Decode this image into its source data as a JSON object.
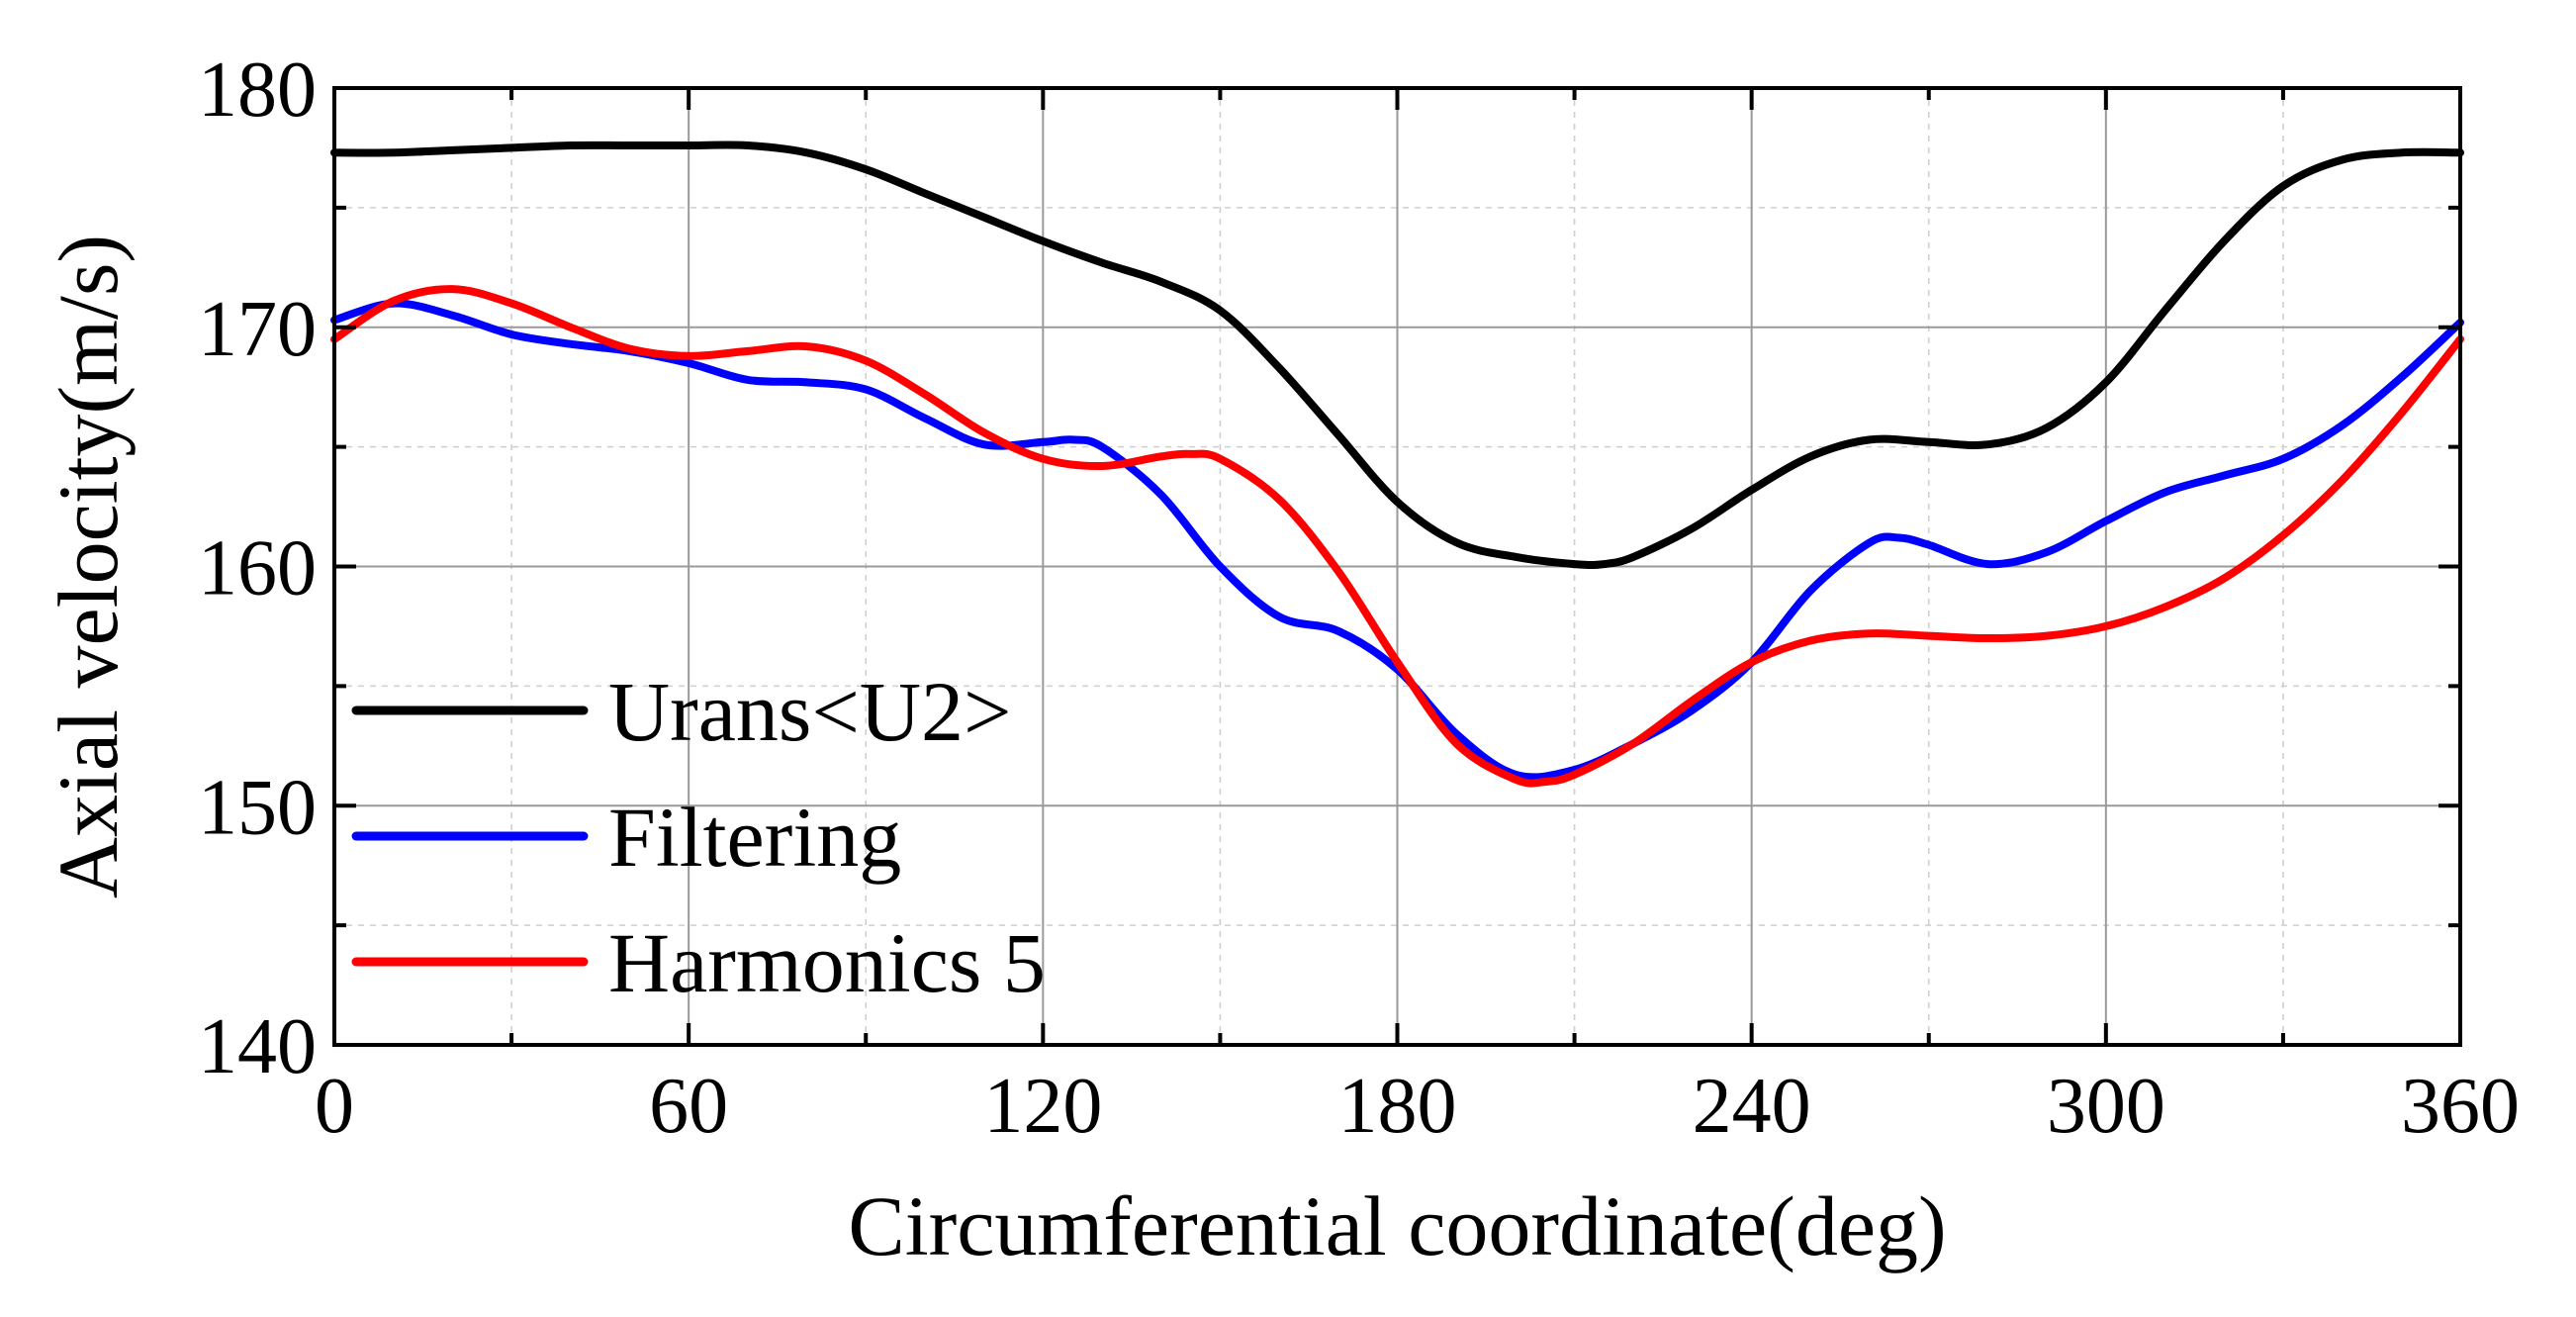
{
  "chart_data": {
    "type": "line",
    "xlabel": "Circumferential coordinate(deg)",
    "ylabel": "Axial velocity(m/s)",
    "xlim": [
      0,
      360
    ],
    "ylim": [
      140,
      180
    ],
    "xticks": [
      0,
      60,
      120,
      180,
      240,
      300,
      360
    ],
    "yticks": [
      140,
      150,
      160,
      170,
      180
    ],
    "grid": true,
    "legend_position": "lower-left",
    "series": [
      {
        "name": "Urans<U2>",
        "color": "#000000",
        "x": [
          0,
          10,
          20,
          30,
          40,
          50,
          60,
          70,
          80,
          90,
          100,
          110,
          120,
          130,
          140,
          150,
          160,
          170,
          180,
          190,
          200,
          210,
          215,
          220,
          230,
          240,
          250,
          260,
          270,
          280,
          290,
          300,
          310,
          320,
          330,
          340,
          350,
          360
        ],
        "y": [
          177.3,
          177.3,
          177.4,
          177.5,
          177.6,
          177.6,
          177.6,
          177.6,
          177.3,
          176.6,
          175.6,
          174.6,
          173.6,
          172.7,
          171.9,
          170.7,
          168.3,
          165.5,
          162.7,
          161.0,
          160.4,
          160.1,
          160.1,
          160.4,
          161.6,
          163.2,
          164.6,
          165.3,
          165.2,
          165.1,
          165.8,
          167.7,
          170.7,
          173.6,
          175.9,
          177.0,
          177.3,
          177.3
        ]
      },
      {
        "name": "Filtering",
        "color": "#0000ff",
        "x": [
          0,
          10,
          20,
          30,
          40,
          50,
          60,
          70,
          80,
          90,
          100,
          110,
          120,
          125,
          130,
          140,
          150,
          160,
          170,
          180,
          190,
          200,
          210,
          220,
          230,
          240,
          250,
          260,
          265,
          270,
          280,
          290,
          300,
          310,
          320,
          330,
          340,
          350,
          360
        ],
        "y": [
          170.3,
          171.0,
          170.5,
          169.7,
          169.3,
          169.0,
          168.5,
          167.8,
          167.7,
          167.4,
          166.2,
          165.1,
          165.2,
          165.3,
          165.0,
          163.0,
          160.0,
          157.9,
          157.3,
          155.7,
          153.0,
          151.3,
          151.5,
          152.6,
          154.0,
          156.0,
          159.0,
          161.0,
          161.2,
          160.9,
          160.1,
          160.6,
          161.9,
          163.1,
          163.8,
          164.5,
          165.9,
          167.9,
          170.2
        ]
      },
      {
        "name": "Harmonics 5",
        "color": "#ff0000",
        "x": [
          0,
          10,
          20,
          30,
          40,
          50,
          60,
          70,
          80,
          90,
          100,
          110,
          120,
          130,
          140,
          145,
          150,
          160,
          170,
          180,
          190,
          200,
          205,
          210,
          220,
          230,
          240,
          250,
          260,
          270,
          280,
          290,
          300,
          310,
          320,
          330,
          340,
          350,
          360
        ],
        "y": [
          169.5,
          171.1,
          171.6,
          171.0,
          170.0,
          169.1,
          168.8,
          169.0,
          169.2,
          168.6,
          167.2,
          165.6,
          164.5,
          164.2,
          164.6,
          164.7,
          164.5,
          162.8,
          159.8,
          156.0,
          152.6,
          151.1,
          151.0,
          151.3,
          152.6,
          154.4,
          156.0,
          156.9,
          157.2,
          157.1,
          157.0,
          157.1,
          157.5,
          158.3,
          159.5,
          161.3,
          163.6,
          166.4,
          169.5
        ]
      }
    ]
  }
}
